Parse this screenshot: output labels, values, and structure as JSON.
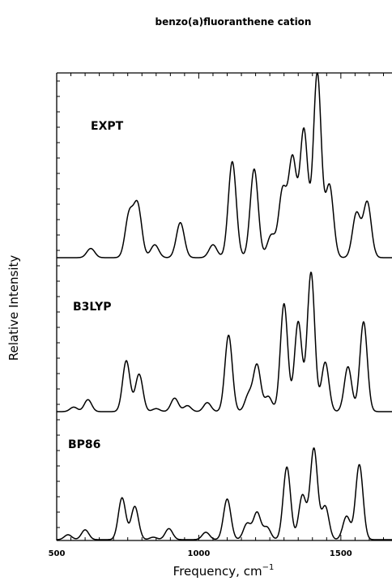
{
  "chart_data": {
    "type": "line",
    "title": "benzo(a)fluoranthene cation",
    "xlabel": "Frequency, cm",
    "xlabel_superscript": "−1",
    "ylabel": "Relative Intensity",
    "xlim": [
      500,
      1680
    ],
    "x_ticks": [
      500,
      1000,
      1500
    ],
    "grid": false,
    "legend": "none",
    "line_color": "#000000",
    "series": [
      {
        "name": "EXPT",
        "peaks": [
          {
            "x": 620,
            "y": 0.05
          },
          {
            "x": 755,
            "y": 0.23
          },
          {
            "x": 785,
            "y": 0.28
          },
          {
            "x": 845,
            "y": 0.07
          },
          {
            "x": 935,
            "y": 0.19
          },
          {
            "x": 1050,
            "y": 0.07
          },
          {
            "x": 1118,
            "y": 0.52
          },
          {
            "x": 1195,
            "y": 0.48
          },
          {
            "x": 1255,
            "y": 0.12
          },
          {
            "x": 1295,
            "y": 0.36
          },
          {
            "x": 1330,
            "y": 0.53
          },
          {
            "x": 1370,
            "y": 0.69
          },
          {
            "x": 1417,
            "y": 1.0
          },
          {
            "x": 1460,
            "y": 0.39
          },
          {
            "x": 1555,
            "y": 0.24
          },
          {
            "x": 1593,
            "y": 0.3
          }
        ]
      },
      {
        "name": "B3LYP",
        "peaks": [
          {
            "x": 560,
            "y": 0.03
          },
          {
            "x": 610,
            "y": 0.08
          },
          {
            "x": 745,
            "y": 0.34
          },
          {
            "x": 790,
            "y": 0.25
          },
          {
            "x": 850,
            "y": 0.02
          },
          {
            "x": 915,
            "y": 0.09
          },
          {
            "x": 960,
            "y": 0.04
          },
          {
            "x": 1030,
            "y": 0.06
          },
          {
            "x": 1105,
            "y": 0.51
          },
          {
            "x": 1175,
            "y": 0.11
          },
          {
            "x": 1205,
            "y": 0.31
          },
          {
            "x": 1245,
            "y": 0.1
          },
          {
            "x": 1300,
            "y": 0.72
          },
          {
            "x": 1350,
            "y": 0.6
          },
          {
            "x": 1395,
            "y": 0.93
          },
          {
            "x": 1445,
            "y": 0.33
          },
          {
            "x": 1525,
            "y": 0.3
          },
          {
            "x": 1580,
            "y": 0.6
          }
        ]
      },
      {
        "name": "BP86",
        "peaks": [
          {
            "x": 540,
            "y": 0.04
          },
          {
            "x": 600,
            "y": 0.08
          },
          {
            "x": 730,
            "y": 0.34
          },
          {
            "x": 775,
            "y": 0.27
          },
          {
            "x": 840,
            "y": 0.02
          },
          {
            "x": 895,
            "y": 0.09
          },
          {
            "x": 1025,
            "y": 0.06
          },
          {
            "x": 1100,
            "y": 0.33
          },
          {
            "x": 1170,
            "y": 0.13
          },
          {
            "x": 1205,
            "y": 0.22
          },
          {
            "x": 1240,
            "y": 0.1
          },
          {
            "x": 1310,
            "y": 0.59
          },
          {
            "x": 1365,
            "y": 0.36
          },
          {
            "x": 1405,
            "y": 0.74
          },
          {
            "x": 1445,
            "y": 0.27
          },
          {
            "x": 1520,
            "y": 0.19
          },
          {
            "x": 1565,
            "y": 0.61
          }
        ]
      }
    ]
  }
}
